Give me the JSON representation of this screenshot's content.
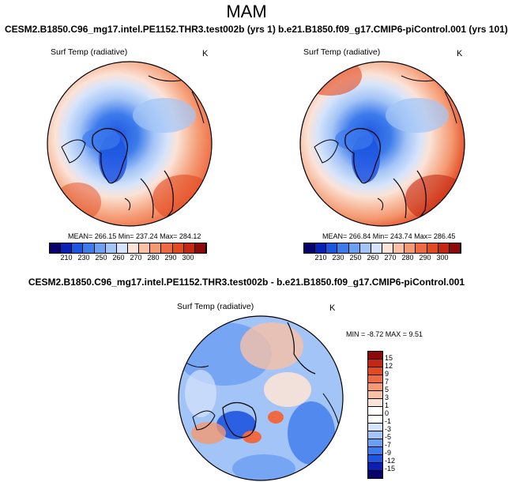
{
  "main_title": "MAM",
  "panels": [
    {
      "run_title": "CESM2.B1850.C96_mg17.intel.PE1152.THR3.test002b (yrs 1)",
      "var_label": "Surf Temp (radiative)",
      "units": "K",
      "stats": "MEAN= 266.15  Min= 237.24  Max= 284.12"
    },
    {
      "run_title": "b.e21.B1850.f09_g17.CMIP6-piControl.001 (yrs 101)",
      "var_label": "Surf Temp (radiative)",
      "units": "K",
      "stats": "MEAN= 266.84  Min= 243.74  Max= 286.45"
    }
  ],
  "abs_colorbar": {
    "ticks": [
      "210",
      "230",
      "250",
      "260",
      "270",
      "280",
      "290",
      "300"
    ],
    "colors": [
      "#08006b",
      "#0a1fb3",
      "#1e55e0",
      "#3d7bec",
      "#6a9ff2",
      "#a3c4f6",
      "#d6e4fb",
      "#fbe3d8",
      "#f8c1a6",
      "#f49972",
      "#ee6a42",
      "#e24a22",
      "#c42812",
      "#8e0a0a"
    ]
  },
  "diff_panel": {
    "run_title": "CESM2.B1850.C96_mg17.intel.PE1152.THR3.test002b - b.e21.B1850.f09_g17.CMIP6-piControl.001",
    "var_label": "Surf Temp (radiative)",
    "units": "K",
    "minmax": "MIN =  -8.72 MAX =   9.51"
  },
  "diff_colorbar": {
    "ticks": [
      "15",
      "12",
      "9",
      "7",
      "5",
      "3",
      "1",
      "0",
      "-1",
      "-3",
      "-5",
      "-7",
      "-9",
      "-12",
      "-15"
    ],
    "colors": [
      "#8e0a0a",
      "#c42812",
      "#e24a22",
      "#ee6a42",
      "#f49972",
      "#f8c1a6",
      "#fbe3d8",
      "#ffffff",
      "#ffffff",
      "#d6e4fb",
      "#a3c4f6",
      "#6a9ff2",
      "#3d7bec",
      "#1e55e0",
      "#0a1fb3",
      "#08006b"
    ]
  }
}
